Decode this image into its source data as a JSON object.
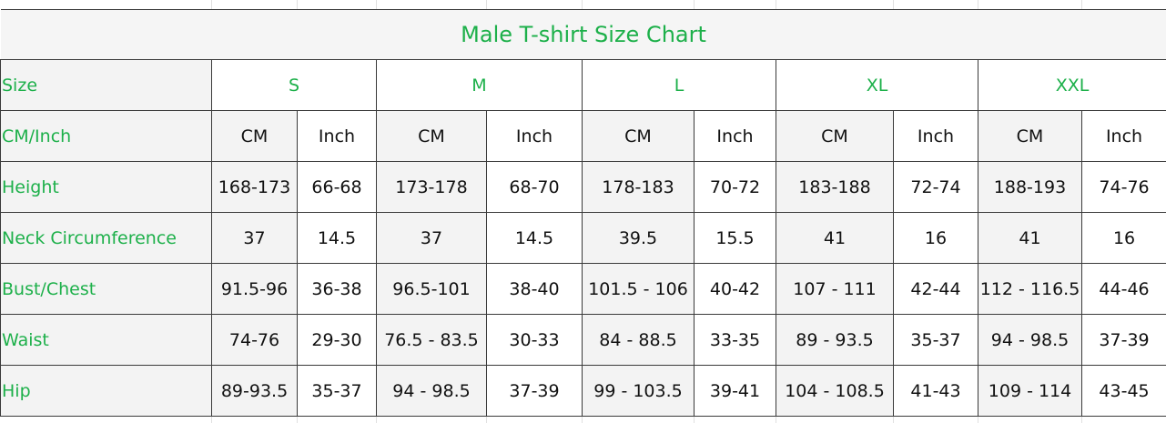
{
  "title": "Male T-shirt Size Chart",
  "header": {
    "label": "Size",
    "sizes": [
      "S",
      "M",
      "L",
      "XL",
      "XXL"
    ]
  },
  "units": {
    "label": "CM/Inch",
    "values": [
      "CM",
      "Inch",
      "CM",
      "Inch",
      "CM",
      "Inch",
      "CM",
      "Inch",
      "CM",
      "Inch"
    ]
  },
  "rows": [
    {
      "label": "Height",
      "values": [
        "168-173",
        "66-68",
        "173-178",
        "68-70",
        "178-183",
        "70-72",
        "183-188",
        "72-74",
        "188-193",
        "74-76"
      ]
    },
    {
      "label": "Neck Circumference",
      "values": [
        "37",
        "14.5",
        "37",
        "14.5",
        "39.5",
        "15.5",
        "41",
        "16",
        "41",
        "16"
      ]
    },
    {
      "label": "Bust/Chest",
      "values": [
        "91.5-96",
        "36-38",
        "96.5-101",
        "38-40",
        "101.5 - 106",
        "40-42",
        "107 - 111",
        "42-44",
        "112 - 116.5",
        "44-46"
      ]
    },
    {
      "label": "Waist",
      "values": [
        "74-76",
        "29-30",
        "76.5 - 83.5",
        "30-33",
        "84 - 88.5",
        "33-35",
        "89 - 93.5",
        "35-37",
        "94 - 98.5",
        "37-39"
      ]
    },
    {
      "label": "Hip",
      "values": [
        "89-93.5",
        "35-37",
        "94 - 98.5",
        "37-39",
        "99 - 103.5",
        "39-41",
        "104 - 108.5",
        "41-43",
        "109 - 114",
        "43-45"
      ]
    }
  ]
}
